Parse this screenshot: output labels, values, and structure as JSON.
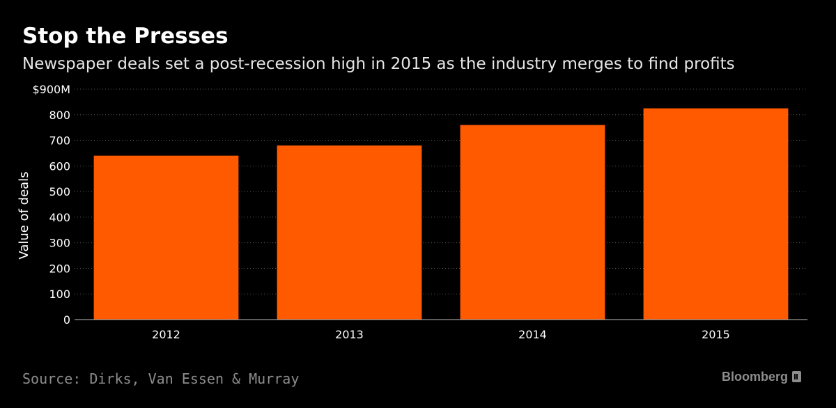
{
  "header": {
    "title": "Stop the Presses",
    "subtitle": "Newspaper deals set a post-recession high in 2015 as the industry merges to find profits"
  },
  "footer": {
    "source": "Source: Dirks, Van Essen & Murray",
    "brand": "Bloomberg"
  },
  "colors": {
    "background": "#000000",
    "bar": "#ff5a00",
    "grid": "#5a5a5a",
    "axis": "#bfbfbf",
    "text_muted": "#8c8c8c"
  },
  "chart_data": {
    "type": "bar",
    "title": "Stop the Presses",
    "subtitle": "Newspaper deals set a post-recession high in 2015 as the industry merges to find profits",
    "xlabel": "",
    "ylabel": "Value of deals",
    "categories": [
      "2012",
      "2013",
      "2014",
      "2015"
    ],
    "values": [
      640,
      680,
      760,
      825
    ],
    "ylim": [
      0,
      900
    ],
    "yticks": [
      0,
      100,
      200,
      300,
      400,
      500,
      600,
      700,
      800,
      900
    ],
    "ytick_labels": [
      "0",
      "100",
      "200",
      "300",
      "400",
      "500",
      "600",
      "700",
      "800",
      "$900M"
    ],
    "grid": true,
    "legend": "none"
  }
}
